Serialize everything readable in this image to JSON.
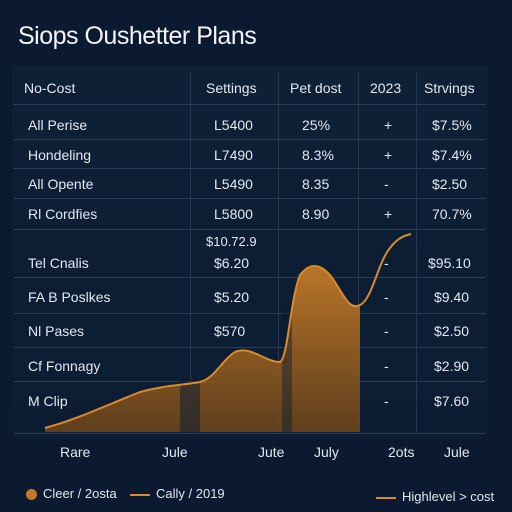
{
  "page": {
    "title": "Siops Oushetter Plans"
  },
  "table": {
    "headers": [
      "No-Cost",
      "Settings",
      "Pet dost",
      "2023",
      "Strvings"
    ],
    "rows": [
      [
        "All Perise",
        "L5400",
        "25%",
        "+",
        "$7.5%"
      ],
      [
        "Hondeling",
        "L7490",
        "8.3%",
        "+",
        "$7.4%"
      ],
      [
        "All Opente",
        "L5490",
        "8.35",
        "-",
        "$2.50"
      ],
      [
        "Rl Cordfies",
        "L5800",
        "8.90",
        "+",
        "70.7%"
      ],
      [
        "Tel Cnalis",
        "$6.20",
        "",
        "-",
        "$95.10"
      ],
      [
        "FA B Poslkes",
        "$5.20",
        "",
        "-",
        "$9.40"
      ],
      [
        "Nl Pases",
        "$570",
        "",
        "-",
        "$2.50"
      ],
      [
        "Cf Fonnagy",
        "",
        "",
        "-",
        "$2.90"
      ],
      [
        "M Clip",
        "",
        "",
        "-",
        "$7.60"
      ]
    ],
    "extra_value": "$10.72.9"
  },
  "chart": {
    "x_labels": [
      "Rare",
      "Jule",
      "Jute",
      "July",
      "2ots",
      "Jule"
    ],
    "line_color": "#d98a2d",
    "fill_color": "#b56d24"
  },
  "legend": {
    "left": "Cleer / 2osta",
    "middle": "Cally / 2019",
    "right": "Highlevel > cost"
  }
}
